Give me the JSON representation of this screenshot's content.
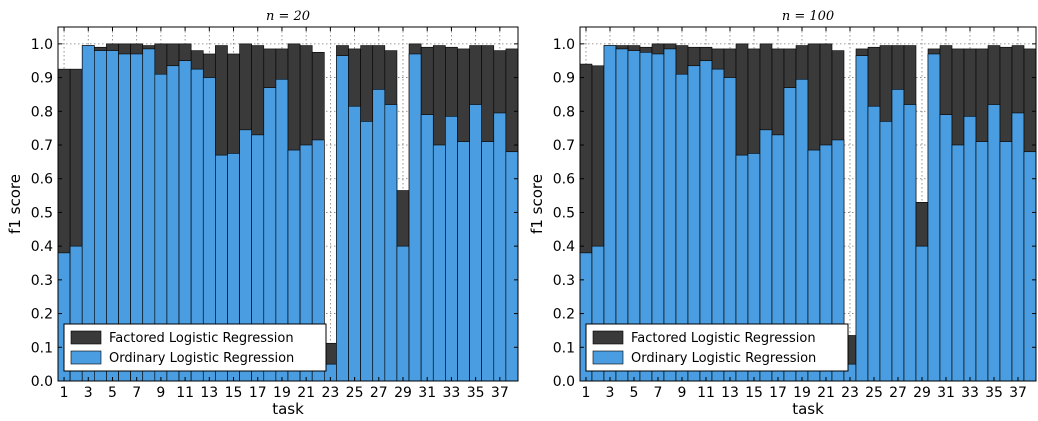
{
  "chart_data": [
    {
      "type": "bar",
      "title": "n = 20",
      "xlabel": "task",
      "ylabel": "f1 score",
      "ylim": [
        0,
        1.05
      ],
      "xlim": [
        0.5,
        38.5
      ],
      "yticks": [
        "0.0",
        "0.1",
        "0.2",
        "0.3",
        "0.4",
        "0.5",
        "0.6",
        "0.7",
        "0.8",
        "0.9",
        "1.0"
      ],
      "xticks": [
        "1",
        "3",
        "5",
        "7",
        "9",
        "11",
        "13",
        "15",
        "17",
        "19",
        "21",
        "23",
        "25",
        "27",
        "29",
        "31",
        "33",
        "35",
        "37"
      ],
      "grid": true,
      "legend_position": "lower-left",
      "categories": [
        1,
        2,
        3,
        4,
        5,
        6,
        7,
        8,
        9,
        10,
        11,
        12,
        13,
        14,
        15,
        16,
        17,
        18,
        19,
        20,
        21,
        22,
        23,
        24,
        25,
        26,
        27,
        28,
        29,
        30,
        31,
        32,
        33,
        34,
        35,
        36,
        37,
        38
      ],
      "series": [
        {
          "name": "Factored Logistic Regression",
          "color": "#3a3a3a",
          "values": [
            0.925,
            0.925,
            0.995,
            0.99,
            1.0,
            1.0,
            1.0,
            0.995,
            1.0,
            1.0,
            1.0,
            0.98,
            0.97,
            0.995,
            0.97,
            1.0,
            0.995,
            0.985,
            0.985,
            1.0,
            0.995,
            0.975,
            0.112,
            0.995,
            0.985,
            0.995,
            0.995,
            0.98,
            0.565,
            1.0,
            0.99,
            0.995,
            0.99,
            0.985,
            0.995,
            0.995,
            0.98,
            0.985
          ]
        },
        {
          "name": "Ordinary Logistic Regression",
          "color": "#4a9de0",
          "values": [
            0.38,
            0.4,
            0.995,
            0.98,
            0.98,
            0.97,
            0.97,
            0.985,
            0.91,
            0.935,
            0.95,
            0.925,
            0.9,
            0.67,
            0.675,
            0.745,
            0.73,
            0.87,
            0.895,
            0.685,
            0.7,
            0.715,
            0.05,
            0.965,
            0.815,
            0.77,
            0.865,
            0.82,
            0.4,
            0.97,
            0.79,
            0.7,
            0.785,
            0.71,
            0.82,
            0.71,
            0.795,
            0.68
          ]
        }
      ]
    },
    {
      "type": "bar",
      "title": "n = 100",
      "xlabel": "task",
      "ylabel": "f1 score",
      "ylim": [
        0,
        1.05
      ],
      "xlim": [
        0.5,
        38.5
      ],
      "yticks": [
        "0.0",
        "0.1",
        "0.2",
        "0.3",
        "0.4",
        "0.5",
        "0.6",
        "0.7",
        "0.8",
        "0.9",
        "1.0"
      ],
      "xticks": [
        "1",
        "3",
        "5",
        "7",
        "9",
        "11",
        "13",
        "15",
        "17",
        "19",
        "21",
        "23",
        "25",
        "27",
        "29",
        "31",
        "33",
        "35",
        "37"
      ],
      "grid": true,
      "legend_position": "lower-left",
      "categories": [
        1,
        2,
        3,
        4,
        5,
        6,
        7,
        8,
        9,
        10,
        11,
        12,
        13,
        14,
        15,
        16,
        17,
        18,
        19,
        20,
        21,
        22,
        23,
        24,
        25,
        26,
        27,
        28,
        29,
        30,
        31,
        32,
        33,
        34,
        35,
        36,
        37,
        38
      ],
      "series": [
        {
          "name": "Factored Logistic Regression",
          "color": "#3a3a3a",
          "values": [
            0.94,
            0.935,
            0.995,
            0.995,
            0.995,
            0.99,
            1.0,
            1.0,
            0.995,
            0.99,
            0.99,
            0.985,
            0.985,
            1.0,
            0.985,
            1.0,
            0.985,
            0.985,
            0.995,
            1.0,
            1.0,
            0.98,
            0.135,
            0.985,
            0.99,
            0.995,
            0.995,
            0.995,
            0.53,
            0.985,
            0.995,
            0.985,
            0.985,
            0.985,
            0.995,
            0.99,
            0.995,
            0.985
          ]
        },
        {
          "name": "Ordinary Logistic Regression",
          "color": "#4a9de0",
          "values": [
            0.38,
            0.4,
            0.995,
            0.985,
            0.98,
            0.975,
            0.97,
            0.985,
            0.91,
            0.935,
            0.95,
            0.925,
            0.9,
            0.67,
            0.675,
            0.745,
            0.73,
            0.87,
            0.895,
            0.685,
            0.7,
            0.715,
            0.05,
            0.965,
            0.815,
            0.77,
            0.865,
            0.82,
            0.4,
            0.97,
            0.79,
            0.7,
            0.785,
            0.71,
            0.82,
            0.71,
            0.795,
            0.68
          ]
        }
      ]
    }
  ]
}
